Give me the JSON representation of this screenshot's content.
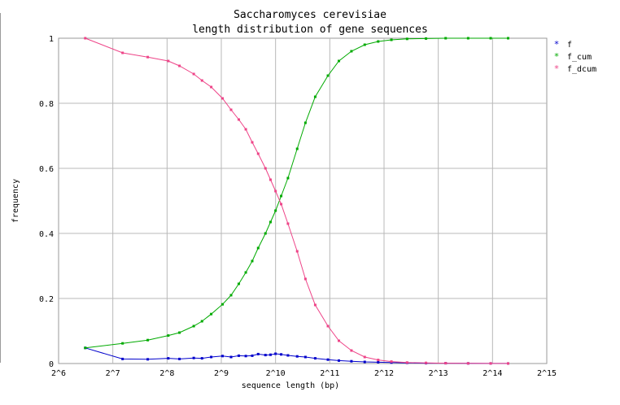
{
  "chart_data": {
    "type": "line",
    "title": "Saccharomyces cerevisiae",
    "subtitle": "length distribution of gene sequences",
    "xlabel": "sequence length (bp)",
    "ylabel": "frequency",
    "x_scale": "log2",
    "xlim_exp": [
      6,
      15
    ],
    "ylim": [
      0,
      1
    ],
    "grid": true,
    "legend_position": "right",
    "x_ticks": [
      "2^6",
      "2^7",
      "2^8",
      "2^9",
      "2^10",
      "2^11",
      "2^12",
      "2^13",
      "2^14",
      "2^15"
    ],
    "y_ticks": [
      "0",
      "0.2",
      "0.4",
      "0.6",
      "0.8",
      "1"
    ],
    "series": [
      {
        "name": "f",
        "color": "#0000cc",
        "x": [
          90,
          145,
          200,
          260,
          300,
          360,
          400,
          450,
          520,
          580,
          640,
          700,
          760,
          820,
          900,
          960,
          1024,
          1100,
          1200,
          1350,
          1500,
          1700,
          2000,
          2300,
          2700,
          3200,
          3800,
          4500,
          5500,
          7000,
          9000,
          12000,
          16000,
          20000
        ],
        "y": [
          0.048,
          0.014,
          0.013,
          0.016,
          0.014,
          0.017,
          0.016,
          0.02,
          0.023,
          0.02,
          0.024,
          0.023,
          0.024,
          0.029,
          0.026,
          0.027,
          0.03,
          0.028,
          0.025,
          0.022,
          0.02,
          0.016,
          0.012,
          0.009,
          0.007,
          0.005,
          0.004,
          0.003,
          0.002,
          0.001,
          0.001,
          0.0005,
          0.0003,
          0.0002
        ]
      },
      {
        "name": "f_cum",
        "color": "#00aa00",
        "x": [
          90,
          145,
          200,
          260,
          300,
          360,
          400,
          450,
          520,
          580,
          640,
          700,
          760,
          820,
          900,
          960,
          1024,
          1100,
          1200,
          1350,
          1500,
          1700,
          2000,
          2300,
          2700,
          3200,
          3800,
          4500,
          5500,
          7000,
          9000,
          12000,
          16000,
          20000
        ],
        "y": [
          0.048,
          0.062,
          0.072,
          0.086,
          0.095,
          0.115,
          0.13,
          0.152,
          0.182,
          0.21,
          0.245,
          0.28,
          0.315,
          0.355,
          0.4,
          0.435,
          0.47,
          0.515,
          0.57,
          0.66,
          0.74,
          0.82,
          0.885,
          0.93,
          0.96,
          0.98,
          0.99,
          0.995,
          0.998,
          0.999,
          1.0,
          1.0,
          1.0,
          1.0
        ]
      },
      {
        "name": "f_dcum",
        "color": "#ee4488",
        "x": [
          90,
          145,
          200,
          260,
          300,
          360,
          400,
          450,
          520,
          580,
          640,
          700,
          760,
          820,
          900,
          960,
          1024,
          1100,
          1200,
          1350,
          1500,
          1700,
          2000,
          2300,
          2700,
          3200,
          3800,
          4500,
          5500,
          7000,
          9000,
          12000,
          16000,
          20000
        ],
        "y": [
          1.0,
          0.955,
          0.942,
          0.93,
          0.915,
          0.89,
          0.87,
          0.85,
          0.815,
          0.78,
          0.75,
          0.72,
          0.68,
          0.645,
          0.6,
          0.565,
          0.53,
          0.49,
          0.43,
          0.345,
          0.26,
          0.18,
          0.115,
          0.07,
          0.04,
          0.02,
          0.011,
          0.006,
          0.003,
          0.002,
          0.001,
          0.0005,
          0.0003,
          0.0002
        ]
      }
    ]
  }
}
